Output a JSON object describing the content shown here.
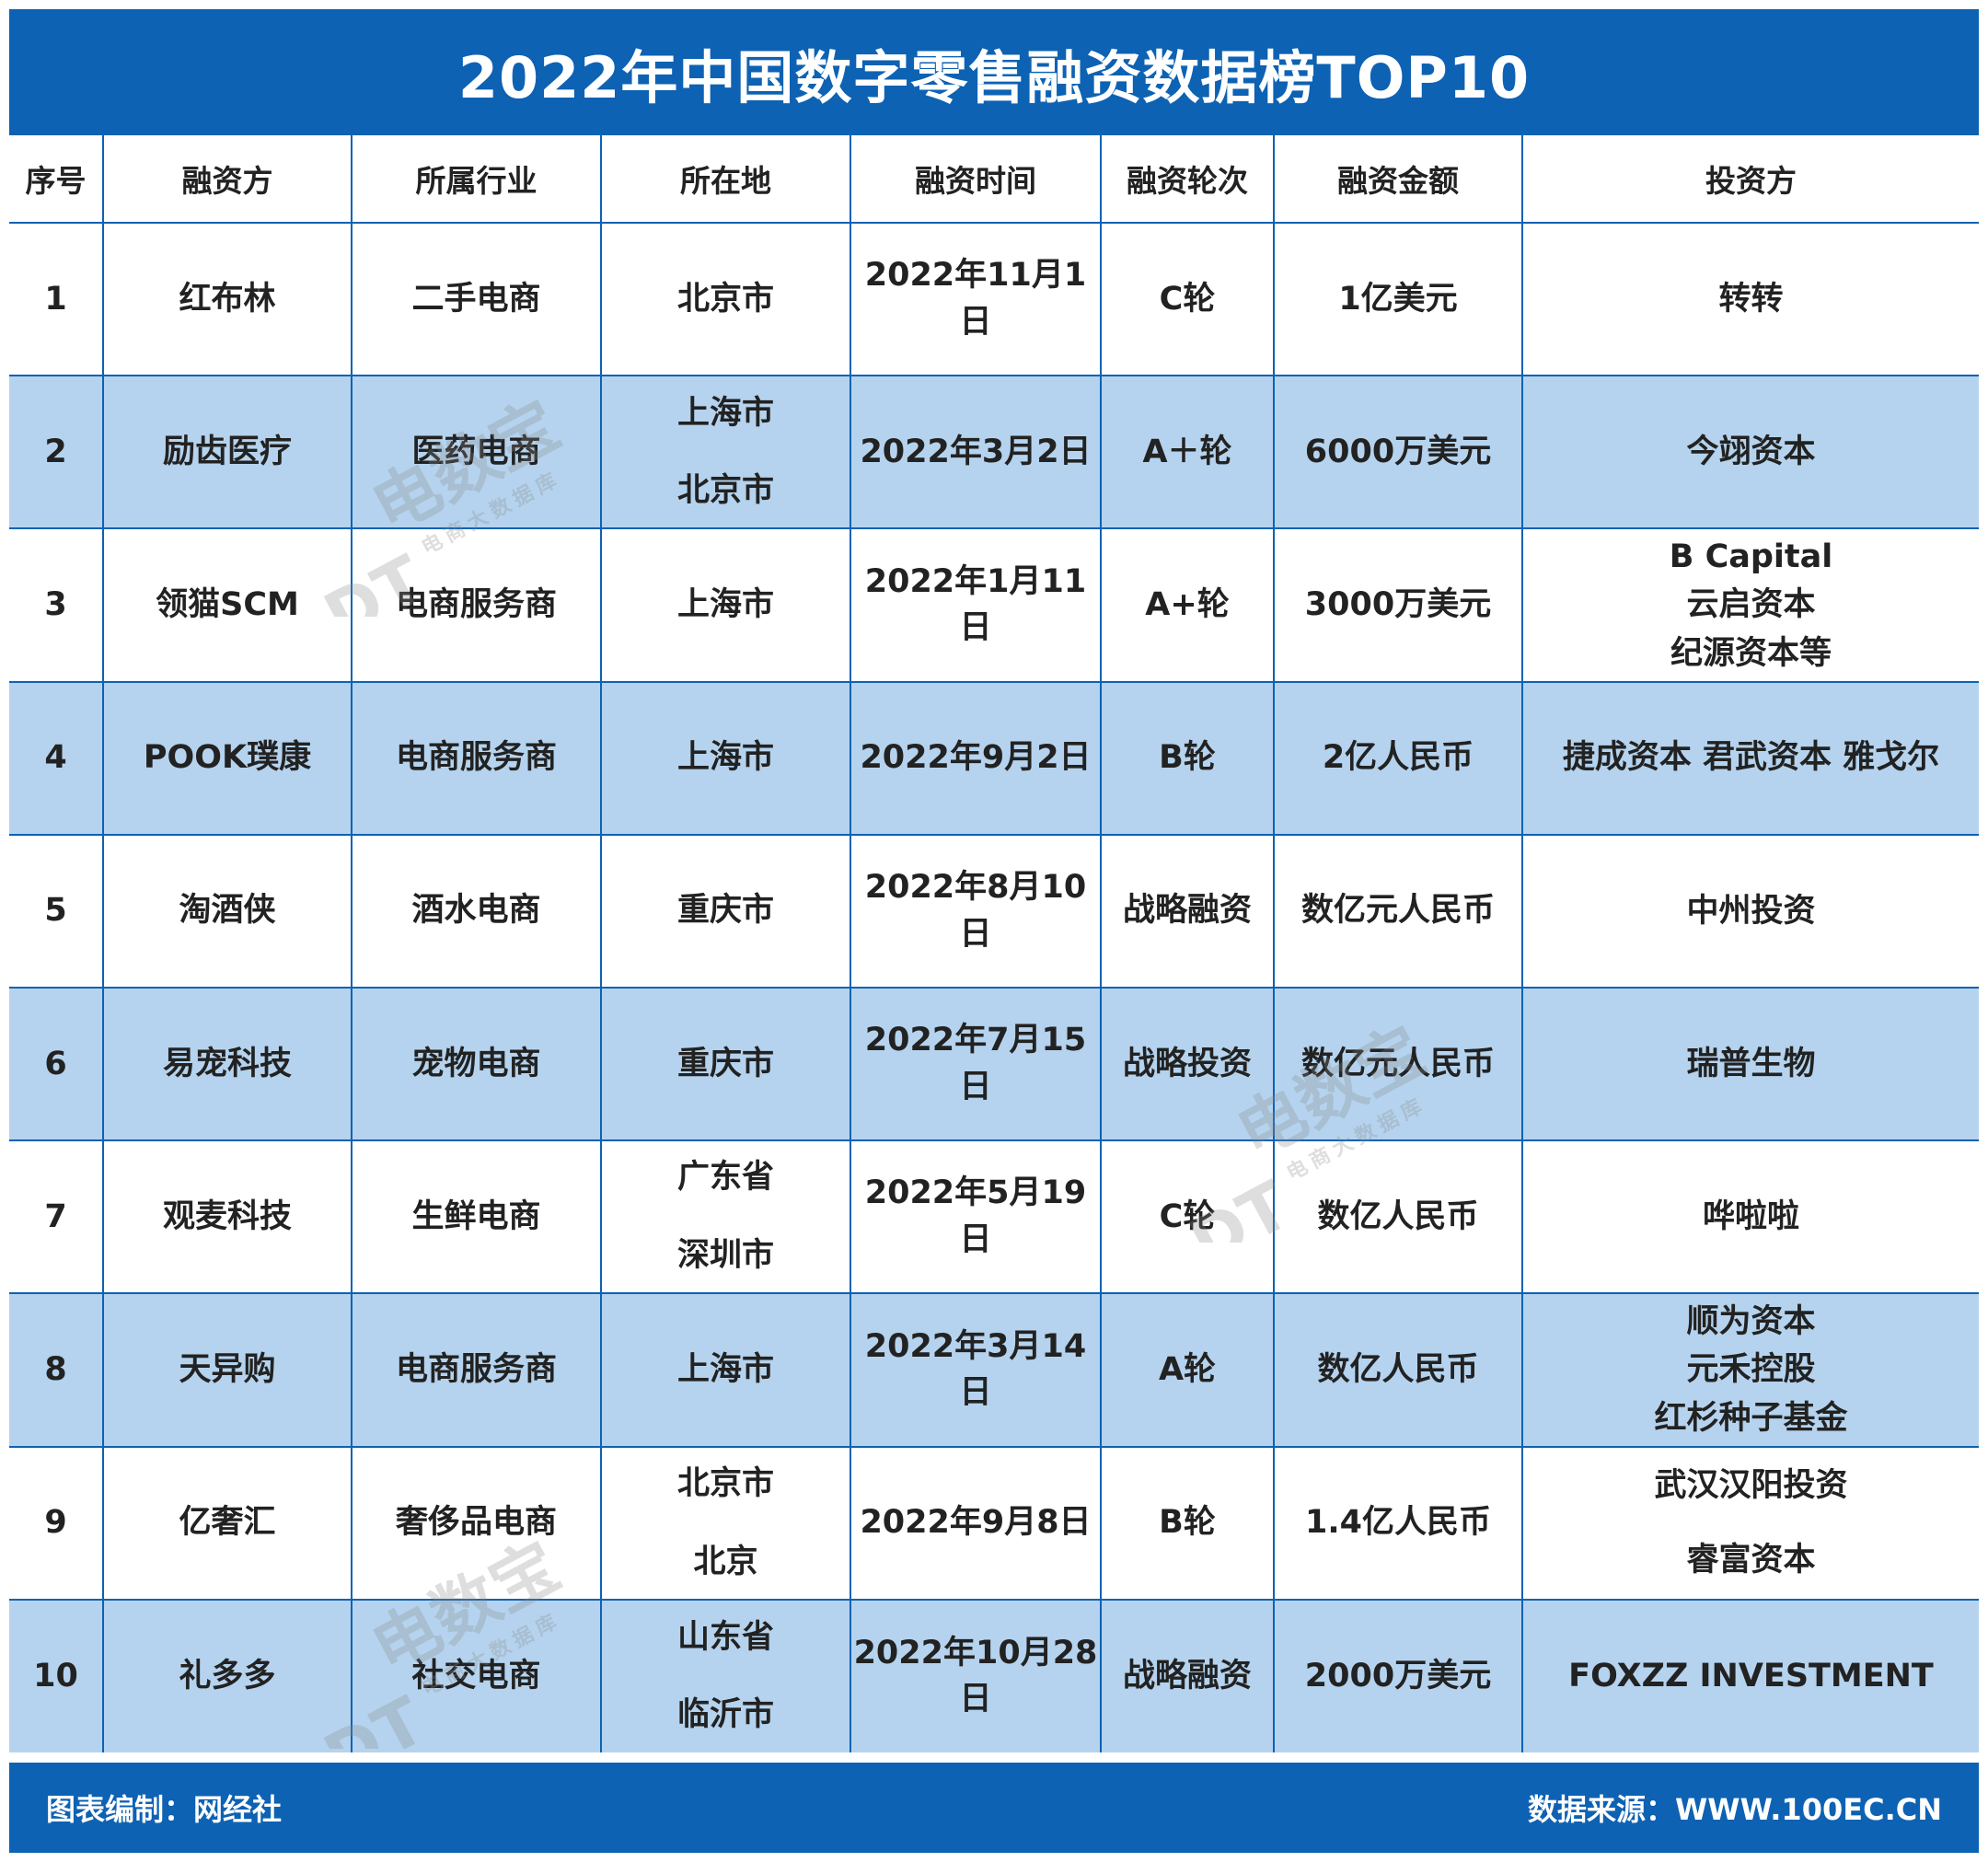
{
  "title": "2022年中国数字零售融资数据榜TOP10",
  "chart_data": {
    "type": "table",
    "title": "2022年中国数字零售融资数据榜TOP10",
    "columns": [
      "序号",
      "融资方",
      "所属行业",
      "所在地",
      "融资时间",
      "融资轮次",
      "融资金额",
      "投资方"
    ],
    "rows": [
      {
        "no": "1",
        "company": "红布林",
        "industry": "二手电商",
        "location": [
          "北京市"
        ],
        "date": "2022年11月1日",
        "round": "C轮",
        "amount": "1亿美元",
        "investors": [
          "转转"
        ]
      },
      {
        "no": "2",
        "company": "励齿医疗",
        "industry": "医药电商",
        "location": [
          "上海市",
          "北京市"
        ],
        "date": "2022年3月2日",
        "round": "A＋轮",
        "amount": "6000万美元",
        "investors": [
          "今翊资本"
        ]
      },
      {
        "no": "3",
        "company": "领猫SCM",
        "industry": "电商服务商",
        "location": [
          "上海市"
        ],
        "date": "2022年1月11日",
        "round": "A+轮",
        "amount": "3000万美元",
        "investors": [
          "B Capital",
          "云启资本",
          "纪源资本等"
        ]
      },
      {
        "no": "4",
        "company": "POOK璞康",
        "industry": "电商服务商",
        "location": [
          "上海市"
        ],
        "date": "2022年9月2日",
        "round": "B轮",
        "amount": "2亿人民币",
        "investors": [
          "捷成资本 君武资本 雅戈尔"
        ]
      },
      {
        "no": "5",
        "company": "淘酒侠",
        "industry": "酒水电商",
        "location": [
          "重庆市"
        ],
        "date": "2022年8月10日",
        "round": "战略融资",
        "amount": "数亿元人民币",
        "investors": [
          "中州投资"
        ]
      },
      {
        "no": "6",
        "company": "易宠科技",
        "industry": "宠物电商",
        "location": [
          "重庆市"
        ],
        "date": "2022年7月15日",
        "round": "战略投资",
        "amount": "数亿元人民币",
        "investors": [
          "瑞普生物"
        ]
      },
      {
        "no": "7",
        "company": "观麦科技",
        "industry": "生鲜电商",
        "location": [
          "广东省",
          "深圳市"
        ],
        "date": "2022年5月19日",
        "round": "C轮",
        "amount": "数亿人民币",
        "investors": [
          "哗啦啦"
        ]
      },
      {
        "no": "8",
        "company": "天异购",
        "industry": "电商服务商",
        "location": [
          "上海市"
        ],
        "date": "2022年3月14日",
        "round": "A轮",
        "amount": "数亿人民币",
        "investors": [
          "顺为资本",
          "元禾控股",
          "红杉种子基金"
        ]
      },
      {
        "no": "9",
        "company": "亿奢汇",
        "industry": "奢侈品电商",
        "location": [
          "北京市",
          "北京"
        ],
        "date": "2022年9月8日",
        "round": "B轮",
        "amount": "1.4亿人民币",
        "investors": [
          "武汉汉阳投资",
          "睿富资本"
        ]
      },
      {
        "no": "10",
        "company": "礼多多",
        "industry": "社交电商",
        "location": [
          "山东省",
          "临沂市"
        ],
        "date": "2022年10月28日",
        "round": "战略融资",
        "amount": "2000万美元",
        "investors": [
          "FOXZZ INVESTMENT"
        ]
      }
    ]
  },
  "watermark": {
    "brand": "电数宝",
    "sub": "电商大数据库",
    "logo": "eDT"
  },
  "footer": {
    "credit": "图表编制：网经社",
    "source": "数据来源：WWW.100EC.CN"
  },
  "colors": {
    "header_blue": "#0d62b3",
    "row_alt": "#b5d3ee",
    "text": "#222222"
  }
}
